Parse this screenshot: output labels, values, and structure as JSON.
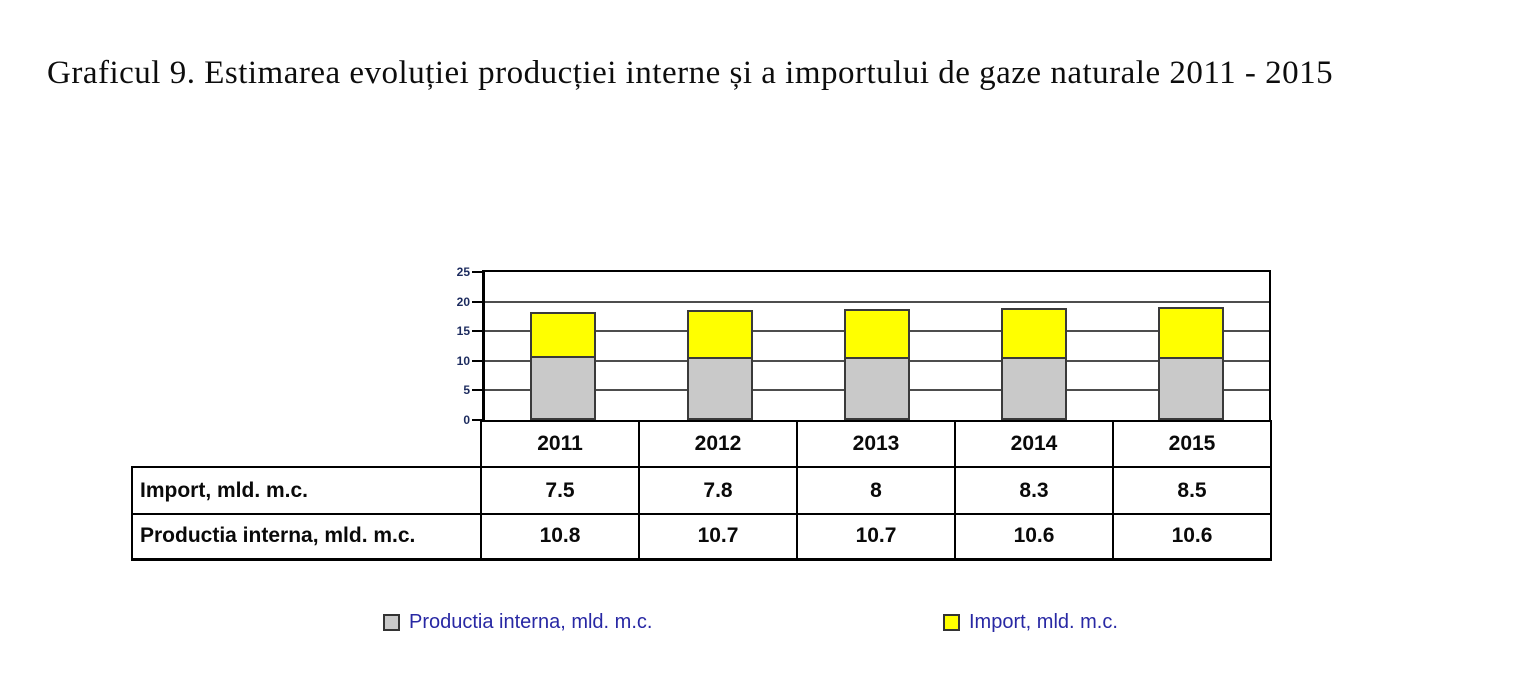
{
  "page": {
    "title": "Graficul 9. Estimarea evoluției producției interne și a importului de gaze naturale 2011 - 2015"
  },
  "chart_data": {
    "type": "bar",
    "stacked": true,
    "title": "Graficul 9. Estimarea evoluției producției interne și a importului de gaze naturale 2011 - 2015",
    "categories": [
      "2011",
      "2012",
      "2013",
      "2014",
      "2015"
    ],
    "series": [
      {
        "name": "Productia interna, mld. m.c.",
        "values": [
          10.8,
          10.7,
          10.7,
          10.6,
          10.6
        ],
        "color": "#c9c9c9"
      },
      {
        "name": "Import, mld. m.c.",
        "values": [
          7.5,
          7.8,
          8,
          8.3,
          8.5
        ],
        "color": "#ffff00"
      }
    ],
    "xlabel": "",
    "ylabel": "",
    "ylim": [
      0,
      25
    ],
    "yticks": [
      0,
      5,
      10,
      15,
      20,
      25
    ],
    "grid": true,
    "legend_position": "bottom"
  },
  "table": {
    "column_headers": [
      "2011",
      "2012",
      "2013",
      "2014",
      "2015"
    ],
    "rows": [
      {
        "label": "Import, mld. m.c.",
        "values": [
          "7.5",
          "7.8",
          "8",
          "8.3",
          "8.5"
        ]
      },
      {
        "label": "Productia interna, mld. m.c.",
        "values": [
          "10.8",
          "10.7",
          "10.7",
          "10.6",
          "10.6"
        ]
      }
    ]
  },
  "legend": {
    "items": [
      {
        "label": "Productia interna, mld. m.c.",
        "color": "#c9c9c9"
      },
      {
        "label": "Import, mld. m.c.",
        "color": "#ffff00"
      }
    ]
  },
  "colors": {
    "bar_border": "#3a3a3a",
    "gridline": "#4d4d4d",
    "axis_label": "#1c2b5e",
    "legend_text": "#2828a4",
    "plot_border": "#000000"
  }
}
